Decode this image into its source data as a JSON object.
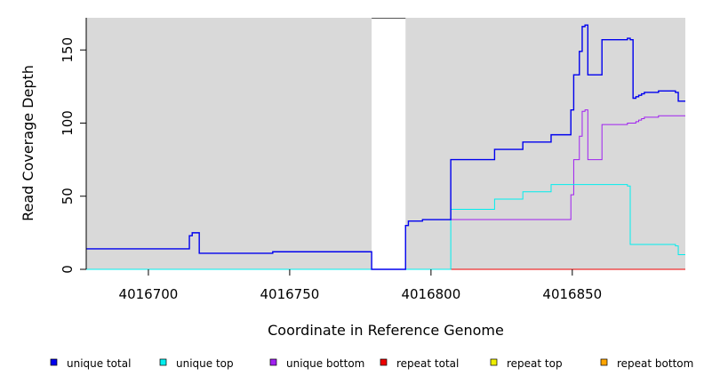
{
  "chart_data": {
    "type": "line",
    "xlabel": "Coordinate in Reference Genome",
    "ylabel": "Read Coverage Depth",
    "xlim": [
      4016678,
      4016890
    ],
    "ylim": [
      0,
      172
    ],
    "x_ticks": [
      {
        "value": 4016700,
        "label": "4016700"
      },
      {
        "value": 4016750,
        "label": "4016750"
      },
      {
        "value": 4016800,
        "label": "4016800"
      },
      {
        "value": 4016850,
        "label": "4016850"
      }
    ],
    "y_ticks": [
      {
        "value": 0,
        "label": "0"
      },
      {
        "value": 50,
        "label": "50"
      },
      {
        "value": 100,
        "label": "100"
      },
      {
        "value": 150,
        "label": "150"
      }
    ],
    "grid": false,
    "background": "#d9d9d9",
    "gaps": [
      [
        4016779,
        4016791
      ]
    ],
    "legend_position": "bottom",
    "series": [
      {
        "name": "unique total",
        "color": "#0000ee",
        "x": [
          4016678,
          4016714.5,
          4016714.5,
          4016715.5,
          4016715.5,
          4016718,
          4016718,
          4016744,
          4016744,
          4016779,
          4016779,
          4016791,
          4016791,
          4016792,
          4016792,
          4016797,
          4016797,
          4016807,
          4016807,
          4016822.5,
          4016822.5,
          4016832.5,
          4016832.5,
          4016842.5,
          4016842.5,
          4016849.5,
          4016849.5,
          4016850.5,
          4016850.5,
          4016852.5,
          4016852.5,
          4016853.5,
          4016853.5,
          4016854.5,
          4016854.5,
          4016855.5,
          4016855.5,
          4016860.5,
          4016860.5,
          4016869.5,
          4016869.5,
          4016870.5,
          4016870.5,
          4016871.5,
          4016871.5,
          4016872.5,
          4016872.5,
          4016873.5,
          4016873.5,
          4016874.5,
          4016874.5,
          4016875.5,
          4016875.5,
          4016880.5,
          4016880.5,
          4016886.5,
          4016886.5,
          4016887.5,
          4016887.5,
          4016890
        ],
        "y": [
          14,
          14,
          23,
          23,
          25,
          25,
          11,
          11,
          12,
          12,
          0,
          0,
          30,
          30,
          33,
          33,
          34,
          34,
          75,
          75,
          82,
          82,
          87,
          87,
          92,
          92,
          109,
          109,
          133,
          133,
          149,
          149,
          166,
          166,
          167,
          167,
          133,
          133,
          157,
          157,
          158,
          158,
          157,
          157,
          117,
          117,
          118,
          118,
          119,
          119,
          120,
          120,
          121,
          121,
          122,
          122,
          121,
          121,
          115,
          115
        ]
      },
      {
        "name": "unique top",
        "color": "#00eeee",
        "x": [
          4016678,
          4016807,
          4016807,
          4016822.5,
          4016822.5,
          4016832.5,
          4016832.5,
          4016842.5,
          4016842.5,
          4016869.5,
          4016869.5,
          4016870.5,
          4016870.5,
          4016886.5,
          4016886.5,
          4016887.5,
          4016887.5,
          4016890
        ],
        "y": [
          0,
          0,
          41,
          41,
          48,
          48,
          53,
          53,
          58,
          58,
          57,
          57,
          17,
          17,
          16,
          16,
          10,
          10
        ]
      },
      {
        "name": "unique bottom",
        "color": "#a020f0",
        "x": [
          4016807,
          4016849.5,
          4016849.5,
          4016850.5,
          4016850.5,
          4016852.5,
          4016852.5,
          4016853.5,
          4016853.5,
          4016854.5,
          4016854.5,
          4016855.5,
          4016855.5,
          4016860.5,
          4016860.5,
          4016869.5,
          4016869.5,
          4016872.5,
          4016872.5,
          4016873.5,
          4016873.5,
          4016874.5,
          4016874.5,
          4016875.5,
          4016875.5,
          4016880.5,
          4016880.5,
          4016890
        ],
        "y": [
          34,
          34,
          51,
          51,
          75,
          75,
          91,
          91,
          108,
          108,
          109,
          109,
          75,
          75,
          99,
          99,
          100,
          100,
          101,
          101,
          102,
          102,
          103,
          103,
          104,
          104,
          105,
          105
        ]
      },
      {
        "name": "repeat total",
        "color": "#ee0000",
        "x": [
          4016791,
          4016890
        ],
        "y": [
          0,
          0
        ]
      },
      {
        "name": "repeat top",
        "color": "#eeee00",
        "x": [
          4016791,
          4016890
        ],
        "y": [
          0,
          0
        ]
      },
      {
        "name": "repeat bottom",
        "color": "#ffa500",
        "x": [
          4016791,
          4016890
        ],
        "y": [
          0,
          0
        ]
      }
    ]
  }
}
